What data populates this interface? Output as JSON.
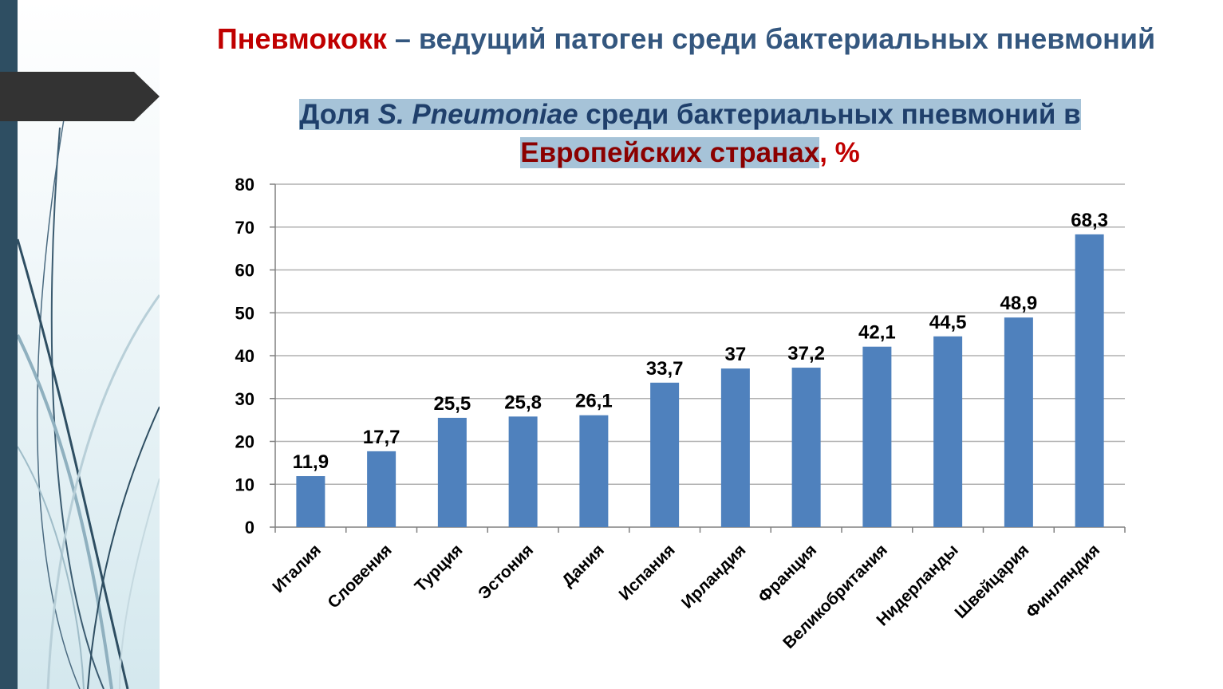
{
  "slide": {
    "title_part1": "Пневмококк",
    "title_part2": " – ведущий патоген среди бактериальных пневмоний"
  },
  "chart_title": {
    "part1": "Доля ",
    "part2_italic": "S. Pneumoniae",
    "part3": " среди бактериальных пневмоний в",
    "part4": "Европейских странах",
    "part5": ", %"
  },
  "colors": {
    "bar": "#4f81bd",
    "title_red": "#c00000",
    "title_blue": "#34577f",
    "left_bar": "#2e4e62"
  },
  "chart_data": {
    "type": "bar",
    "categories": [
      "Италия",
      "Словения",
      "Турция",
      "Эстония",
      "Дания",
      "Испания",
      "Ирландия",
      "Франция",
      "Великобритания",
      "Нидерланды",
      "Швейцария",
      "Финляндия"
    ],
    "values": [
      11.9,
      17.7,
      25.5,
      25.8,
      26.1,
      33.7,
      37,
      37.2,
      42.1,
      44.5,
      48.9,
      68.3
    ],
    "data_labels": [
      "11,9",
      "17,7",
      "25,5",
      "25,8",
      "26,1",
      "33,7",
      "37",
      "37,2",
      "42,1",
      "44,5",
      "48,9",
      "68,3"
    ],
    "yticks": [
      "0",
      "10",
      "20",
      "30",
      "40",
      "50",
      "60",
      "70",
      "80"
    ],
    "ylim": [
      0,
      80
    ],
    "grid": true,
    "legend": "none"
  }
}
